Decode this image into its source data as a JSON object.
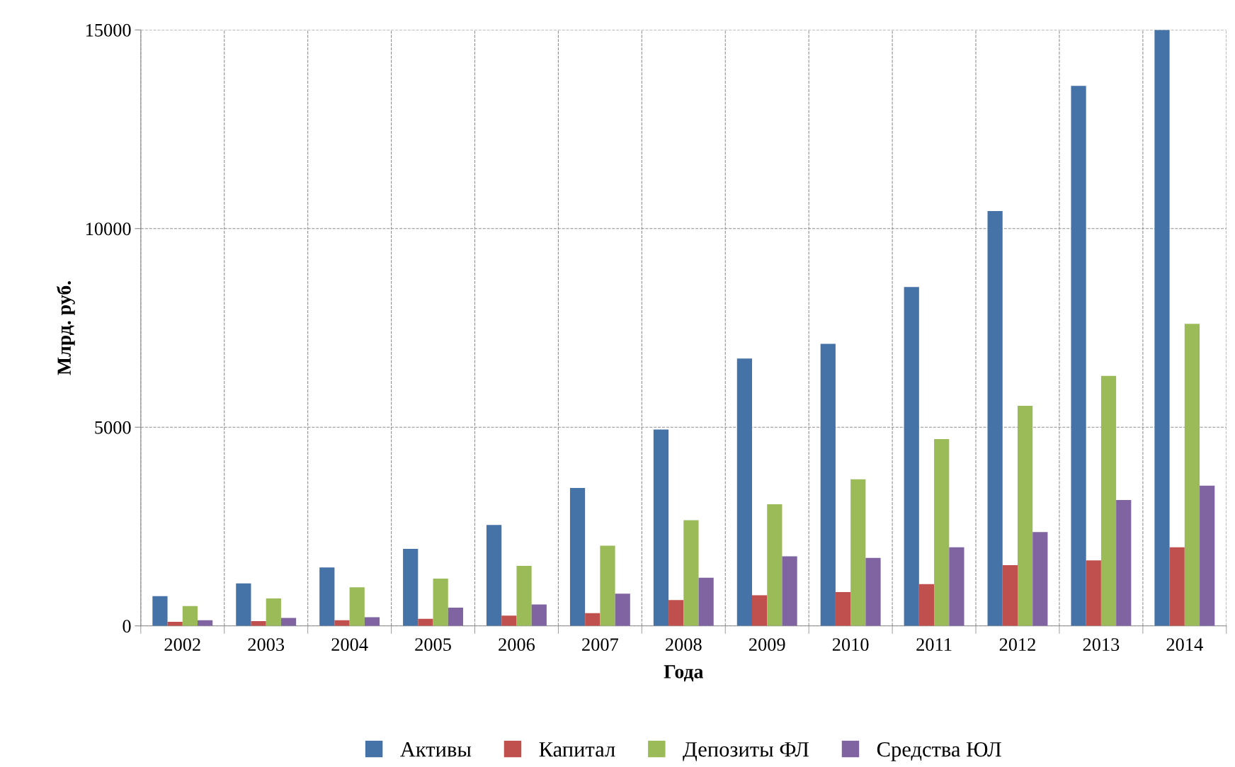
{
  "chart_data": {
    "type": "bar",
    "xlabel": "Года",
    "ylabel": "Млрд. руб.",
    "categories": [
      "2002",
      "2003",
      "2004",
      "2005",
      "2006",
      "2007",
      "2008",
      "2009",
      "2010",
      "2011",
      "2012",
      "2013",
      "2014"
    ],
    "series": [
      {
        "name": "Активы",
        "color": "#4572a7",
        "values": [
          750,
          1070,
          1470,
          1940,
          2540,
          3470,
          4940,
          6730,
          7100,
          8530,
          10440,
          13590,
          15000
        ]
      },
      {
        "name": "Капитал",
        "color": "#c0504d",
        "values": [
          100,
          120,
          140,
          180,
          260,
          320,
          650,
          770,
          850,
          1050,
          1530,
          1650,
          1980
        ]
      },
      {
        "name": "Депозиты ФЛ",
        "color": "#9bbb59",
        "values": [
          500,
          690,
          970,
          1190,
          1510,
          2020,
          2660,
          3060,
          3690,
          4700,
          5540,
          6290,
          7600
        ]
      },
      {
        "name": "Средства ЮЛ",
        "color": "#8064a2",
        "values": [
          140,
          200,
          220,
          460,
          540,
          810,
          1210,
          1750,
          1710,
          1980,
          2360,
          3170,
          3530
        ]
      }
    ],
    "ylim": [
      0,
      15000
    ],
    "yticks": [
      0,
      5000,
      10000,
      15000
    ],
    "grid": true,
    "legend": "bottom"
  }
}
